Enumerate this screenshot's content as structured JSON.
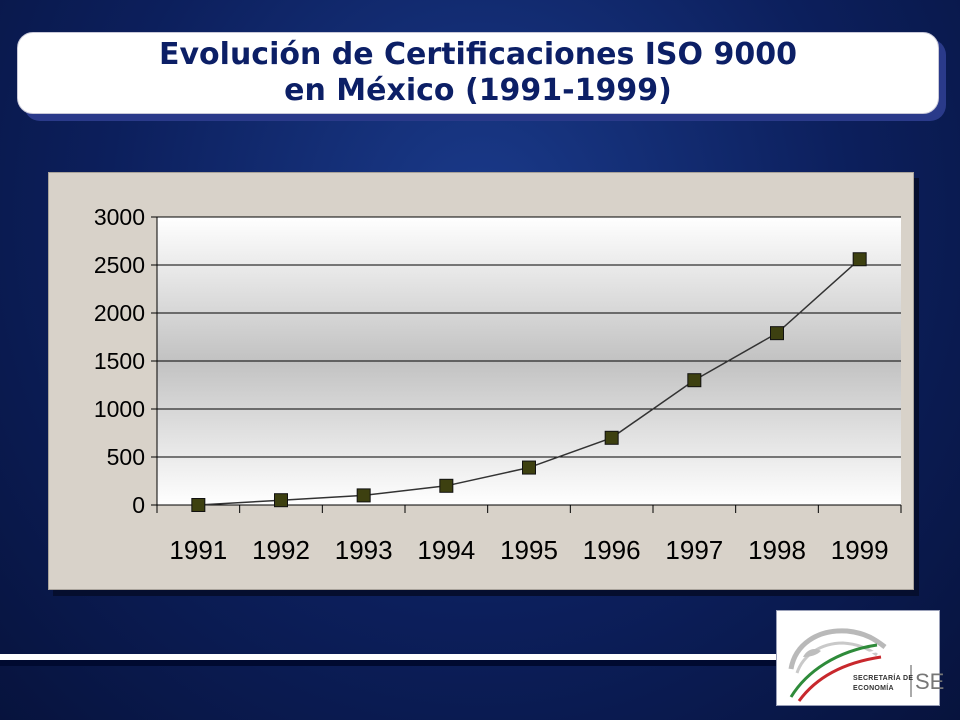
{
  "title": {
    "line1": "Evolución de Certificaciones ISO 9000",
    "line2": "en México (1991-1999)"
  },
  "chart_data": {
    "type": "line",
    "categories": [
      "1991",
      "1992",
      "1993",
      "1994",
      "1995",
      "1996",
      "1997",
      "1998",
      "1999"
    ],
    "values": [
      0,
      50,
      100,
      200,
      390,
      700,
      1300,
      1790,
      2560
    ],
    "ylim": [
      0,
      3000
    ],
    "yticks": [
      0,
      500,
      1000,
      1500,
      2000,
      2500,
      3000
    ],
    "grid": true,
    "marker": "square",
    "colors": {
      "line": "#333333",
      "marker_fill": "#3d4010",
      "marker_stroke": "#111111",
      "plot_top": "#ffffff",
      "plot_mid": "#c2c2c2"
    }
  },
  "logo": {
    "line1": "SECRETARÍA DE",
    "line2": "ECONOMÍA",
    "mark": "SE"
  }
}
